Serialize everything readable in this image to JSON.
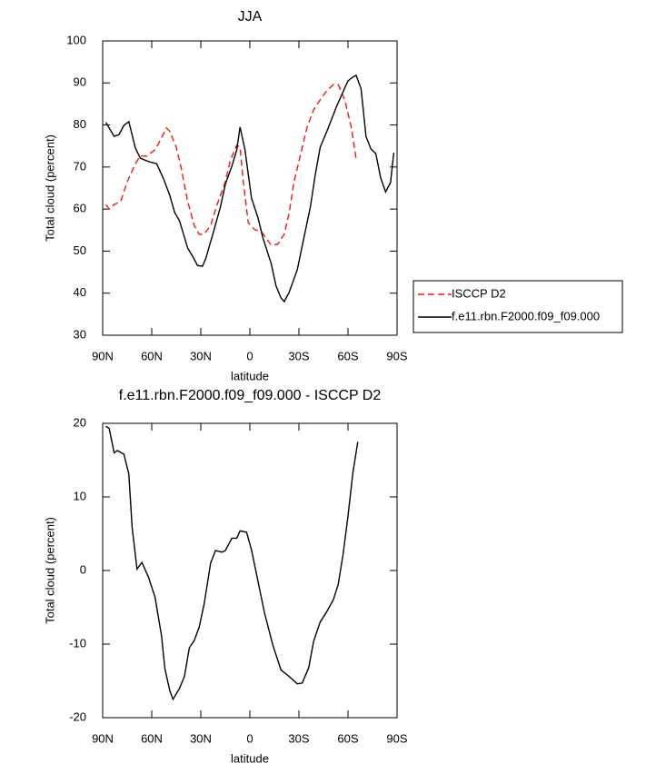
{
  "chart_data": [
    {
      "type": "line",
      "title": "JJA",
      "xlabel": "latitude",
      "ylabel": "Total cloud (percent)",
      "xlim": [
        90,
        -90
      ],
      "xticks": [
        {
          "value": 90,
          "label": "90N"
        },
        {
          "value": 60,
          "label": "60N"
        },
        {
          "value": 30,
          "label": "30N"
        },
        {
          "value": 0,
          "label": "0"
        },
        {
          "value": -30,
          "label": "30S"
        },
        {
          "value": -60,
          "label": "60S"
        },
        {
          "value": -90,
          "label": "90S"
        }
      ],
      "ylim": [
        30,
        100
      ],
      "yticks": [
        30,
        40,
        50,
        60,
        70,
        80,
        90,
        100
      ],
      "legend": "right",
      "series": [
        {
          "name": "ISCCP D2",
          "color": "#e8191e",
          "dash": true,
          "x": [
            88,
            86,
            83,
            79,
            75,
            70,
            67,
            63,
            58,
            55,
            51,
            49,
            45,
            42,
            38,
            34,
            31,
            28,
            24,
            20,
            15,
            12,
            8,
            6,
            4,
            1,
            -3,
            -7,
            -10,
            -13,
            -17,
            -21,
            -24,
            -27,
            -31,
            -35,
            -39,
            -43,
            -47,
            -51,
            -54,
            -58,
            -62,
            -65
          ],
          "values": [
            61.1,
            60.0,
            61.1,
            61.8,
            66.5,
            70.8,
            72.6,
            72.6,
            74.1,
            76.2,
            79.3,
            78.5,
            74.7,
            69.8,
            61.8,
            56.1,
            54.0,
            54.0,
            56.1,
            61.1,
            66.5,
            71.5,
            75.2,
            74.7,
            66.5,
            56.8,
            55.1,
            54.6,
            53.1,
            51.4,
            51.6,
            54.0,
            59.0,
            66.5,
            73.0,
            79.5,
            83.6,
            86.0,
            88.1,
            89.6,
            89.6,
            86.0,
            79.5,
            71.9
          ]
        },
        {
          "name": "f.e11.rbn.F2000.f09_f09.000",
          "color": "#000000",
          "dash": false,
          "x": [
            88,
            83,
            80,
            77,
            74,
            70,
            67,
            62,
            57,
            53,
            49,
            46,
            43,
            38,
            35,
            32,
            29,
            27,
            22,
            18,
            15,
            11,
            8,
            6,
            3,
            -1,
            -5,
            -8,
            -13,
            -16,
            -19,
            -21,
            -24,
            -29,
            -33,
            -37,
            -40,
            -43,
            -47,
            -50,
            -53,
            -57,
            -60,
            -63,
            -65,
            -68,
            -71,
            -74,
            -77,
            -80,
            -83,
            -86,
            -88
          ],
          "values": [
            80.6,
            77.3,
            77.7,
            79.9,
            80.8,
            74.5,
            72.1,
            71.3,
            70.8,
            67.4,
            63.3,
            59.2,
            57.2,
            50.7,
            48.8,
            46.6,
            46.4,
            48.2,
            54.9,
            60.5,
            65.9,
            70.2,
            74.1,
            79.5,
            74.1,
            62.6,
            57.9,
            53.1,
            47.1,
            41.7,
            38.9,
            38.0,
            40.2,
            45.6,
            53.1,
            60.5,
            68.2,
            74.7,
            78.4,
            81.4,
            84.4,
            87.9,
            90.5,
            91.4,
            91.8,
            88.6,
            77.3,
            74.3,
            73.2,
            67.4,
            64.1,
            66.3,
            73.4
          ]
        }
      ]
    },
    {
      "type": "line",
      "title": "f.e11.rbn.F2000.f09_f09.000 - ISCCP D2",
      "xlabel": "latitude",
      "ylabel": "Total cloud (percent)",
      "xlim": [
        90,
        -90
      ],
      "xticks": [
        {
          "value": 90,
          "label": "90N"
        },
        {
          "value": 60,
          "label": "60N"
        },
        {
          "value": 30,
          "label": "30N"
        },
        {
          "value": 0,
          "label": "0"
        },
        {
          "value": -30,
          "label": "30S"
        },
        {
          "value": -60,
          "label": "60S"
        },
        {
          "value": -90,
          "label": "90S"
        }
      ],
      "ylim": [
        -20,
        20
      ],
      "yticks": [
        -20,
        -10,
        0,
        10,
        20
      ],
      "series": [
        {
          "color": "#000000",
          "dash": false,
          "x": [
            88,
            86,
            83,
            81,
            77,
            74,
            72,
            69,
            66,
            62,
            58,
            54,
            52,
            49,
            47,
            43,
            40,
            37,
            34,
            31,
            28,
            24,
            21,
            17,
            15,
            11,
            8,
            6,
            2,
            -1,
            -5,
            -9,
            -14,
            -19,
            -24,
            -29,
            -32,
            -36,
            -39,
            -43,
            -47,
            -51,
            -54,
            -57,
            -60,
            -63,
            -66
          ],
          "values": [
            19.6,
            19.3,
            16.0,
            16.3,
            15.8,
            13.1,
            5.9,
            0.2,
            1.1,
            -0.9,
            -3.6,
            -8.9,
            -13.3,
            -16.3,
            -17.5,
            -16.0,
            -14.4,
            -10.5,
            -9.5,
            -7.7,
            -4.6,
            1.0,
            2.7,
            2.5,
            2.7,
            4.4,
            4.4,
            5.4,
            5.2,
            2.8,
            -1.5,
            -5.8,
            -10.1,
            -13.5,
            -14.4,
            -15.4,
            -15.3,
            -13.2,
            -9.6,
            -7.0,
            -5.6,
            -4.0,
            -1.9,
            2.2,
            7.4,
            13.3,
            17.5
          ]
        }
      ]
    }
  ]
}
